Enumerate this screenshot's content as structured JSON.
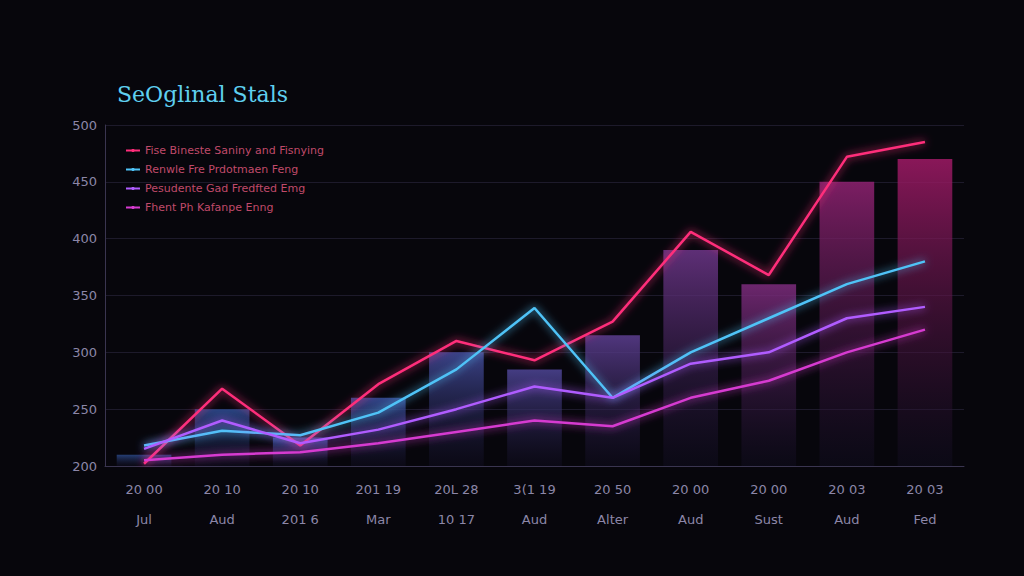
{
  "chart_data": {
    "type": "bar",
    "title": "SeOglinal Stals",
    "categories": [
      "20 00\nJul",
      "20 10\nAud",
      "20 10\n201 6",
      "201 19\nMar",
      "20L 28\n10 17",
      "3(1 19\nAud",
      "20 50\nAlter",
      "20 00\nAud",
      "20 00\nSust",
      "20 03\nAud",
      "20 03\nFed"
    ],
    "series": [
      {
        "type": "bar",
        "colors": [
          "#2b4a8a",
          "#2f4f96",
          "#34509c",
          "#3a4f9e",
          "#434c9c",
          "#4f4698",
          "#5d3f92",
          "#6d3689",
          "#7e2c7e",
          "#902272",
          "#a01a66"
        ],
        "values": [
          210,
          250,
          225,
          260,
          300,
          285,
          315,
          390,
          360,
          450,
          470
        ]
      },
      {
        "type": "line",
        "name": "Fise Bineste Saniny and Fisnying",
        "color": "#ff2d7a",
        "values": [
          202,
          268,
          218,
          272,
          310,
          293,
          327,
          406,
          368,
          472,
          485
        ]
      },
      {
        "type": "line",
        "name": "Renwle Fre Prdotmaen Feng",
        "color": "#4fc3f7",
        "values": [
          218,
          231,
          227,
          247,
          285,
          339,
          260,
          300,
          330,
          360,
          380
        ]
      },
      {
        "type": "line",
        "name": "Pesudente Gad Fredfted Emg",
        "color": "#b05cff",
        "values": [
          215,
          240,
          220,
          232,
          250,
          270,
          260,
          290,
          300,
          330,
          340
        ]
      },
      {
        "type": "line",
        "name": "Fhent Ph Kafanpe Enng",
        "color": "#d63ad0",
        "values": [
          205,
          210,
          212,
          220,
          230,
          240,
          235,
          260,
          275,
          300,
          320
        ]
      }
    ],
    "ylim": [
      200,
      500
    ],
    "yticks": [
      200,
      250,
      300,
      350,
      400,
      450,
      500
    ],
    "grid": true,
    "legend": "upper left"
  }
}
